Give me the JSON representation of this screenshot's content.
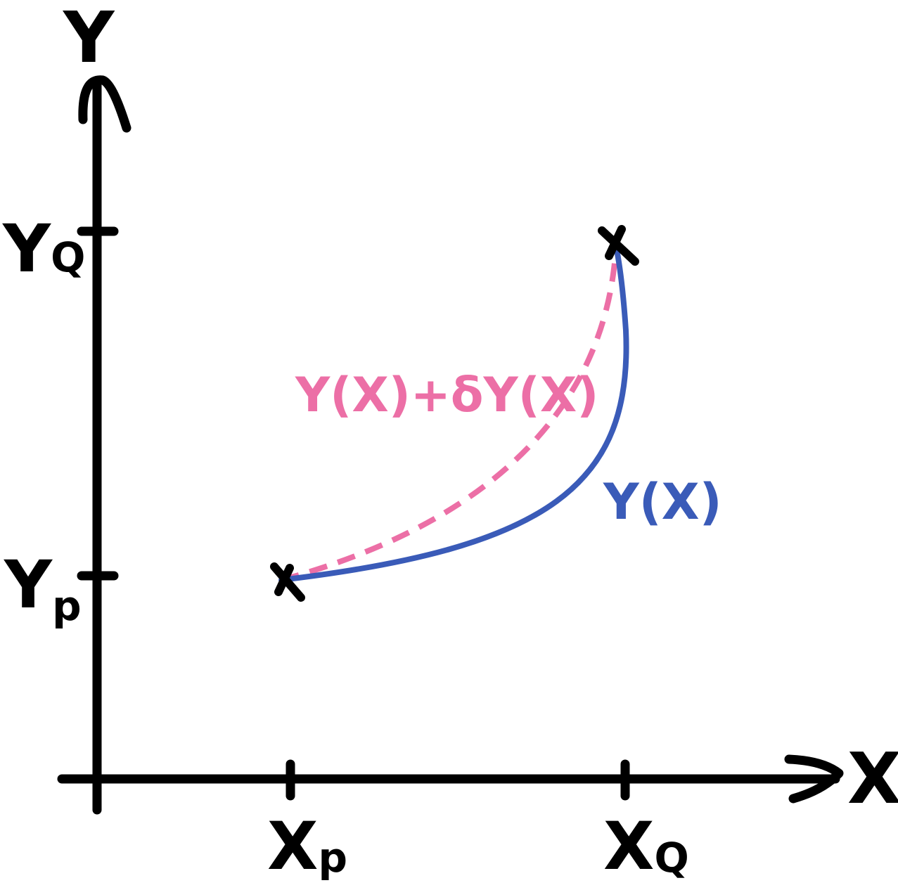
{
  "axes": {
    "x_label": "X",
    "y_label": "Y"
  },
  "ticks": {
    "x": [
      {
        "main": "X",
        "sub": "p"
      },
      {
        "main": "X",
        "sub": "Q"
      }
    ],
    "y": [
      {
        "main": "Y",
        "sub": "Q"
      },
      {
        "main": "Y",
        "sub": "p"
      }
    ]
  },
  "curves": {
    "true_path": {
      "label": "Y(X)",
      "color": "#3a5bb8",
      "style": "solid"
    },
    "varied_path": {
      "label": "Y(X)+δY(X)",
      "color": "#ec6fa6",
      "style": "dashed"
    }
  },
  "endpoint_marker": "x",
  "colors": {
    "axis": "#000000",
    "background": "#ffffff"
  }
}
